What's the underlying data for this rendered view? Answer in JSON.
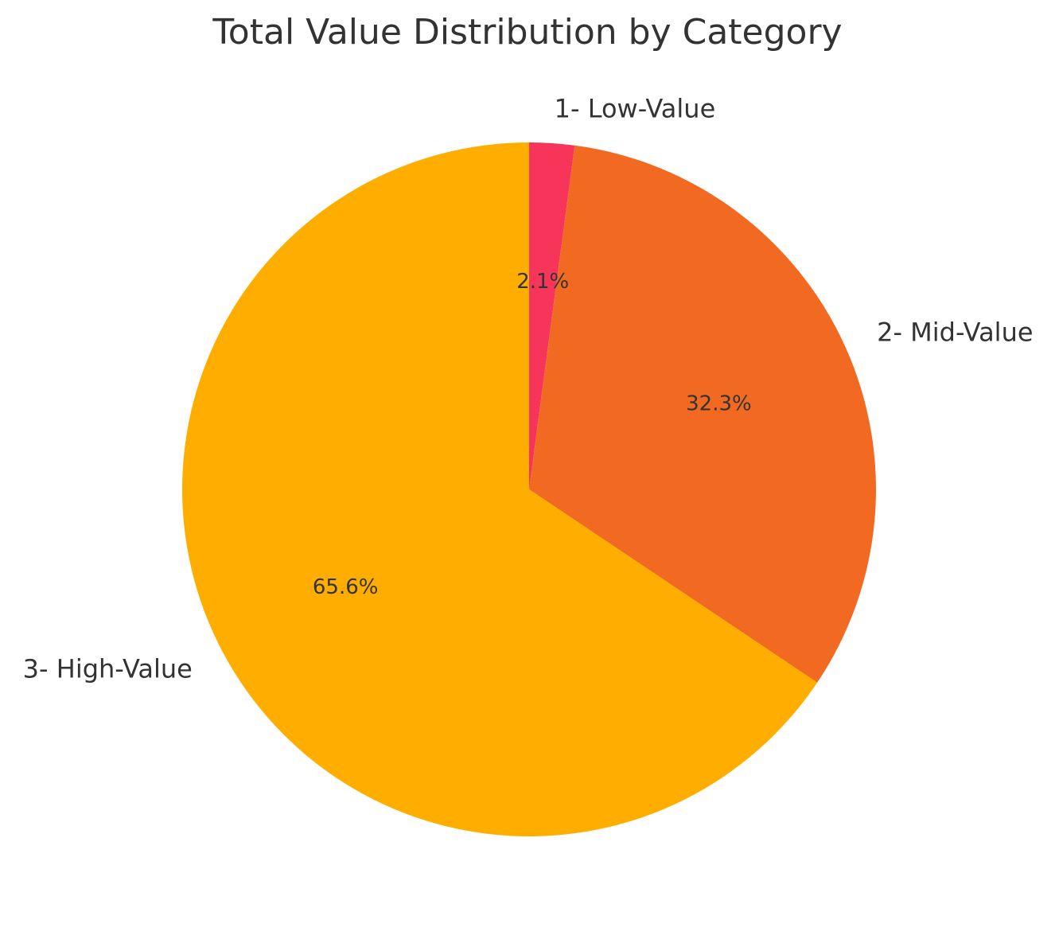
{
  "chart_data": {
    "type": "pie",
    "title": "Total Value Distribution by Category",
    "slices": [
      {
        "label": "1- Low-Value",
        "value": 2.1,
        "pct_label": "2.1%",
        "color": "#F7355A"
      },
      {
        "label": "2- Mid-Value",
        "value": 32.3,
        "pct_label": "32.3%",
        "color": "#F26A22"
      },
      {
        "label": "3- High-Value",
        "value": 65.6,
        "pct_label": "65.6%",
        "color": "#FFAE00"
      }
    ],
    "start_angle": "top",
    "direction": "clockwise",
    "legend": "none"
  }
}
